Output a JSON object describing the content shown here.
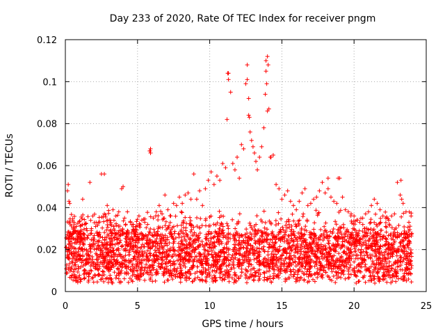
{
  "chart_data": {
    "type": "scatter",
    "title": "Day 233 of 2020, Rate Of TEC Index for receiver pngm",
    "xlabel": "GPS time / hours",
    "ylabel": "ROTI / TECUs",
    "xlim": [
      0,
      25
    ],
    "ylim": [
      0,
      0.12
    ],
    "x_ticks": [
      0,
      5,
      10,
      15,
      20,
      25
    ],
    "y_ticks": [
      0,
      0.02,
      0.04,
      0.06,
      0.08,
      0.1,
      0.12
    ],
    "x_tick_labels": [
      "0",
      "5",
      "10",
      "15",
      "20",
      "25"
    ],
    "y_tick_labels": [
      "0",
      "0.02",
      "0.04",
      "0.06",
      "0.08",
      "0.1",
      "0.12"
    ],
    "grid": true,
    "marker": "plus",
    "color": "#ff0000",
    "series": [
      {
        "name": "ROTI",
        "x": [
          0.05,
          0.15,
          0.25,
          0.35,
          0.45,
          0.6,
          0.75,
          0.9,
          1.05,
          1.2,
          1.35,
          1.5,
          1.7,
          1.9,
          2.1,
          2.3,
          2.5,
          2.7,
          2.9,
          3.1,
          3.3,
          3.5,
          3.7,
          3.9,
          4.1,
          4.3,
          4.5,
          4.7,
          4.9,
          5.1,
          5.3,
          5.5,
          5.7,
          5.85,
          5.9,
          6.1,
          6.3,
          6.5,
          6.7,
          6.9,
          7.1,
          7.3,
          7.5,
          7.7,
          7.9,
          8.1,
          8.3,
          8.5,
          8.7,
          8.9,
          9.1,
          9.3,
          9.5,
          9.7,
          9.9,
          10.1,
          10.3,
          10.5,
          10.7,
          10.9,
          11.1,
          11.2,
          11.3,
          11.45,
          11.6,
          11.75,
          11.9,
          12.05,
          12.2,
          12.35,
          12.5,
          12.6,
          12.7,
          12.8,
          12.9,
          13.0,
          13.1,
          13.2,
          13.3,
          13.45,
          13.6,
          13.75,
          13.85,
          13.9,
          14.0,
          14.1,
          14.25,
          14.4,
          14.6,
          14.8,
          15.0,
          15.2,
          15.4,
          15.6,
          15.8,
          16.0,
          16.2,
          16.4,
          16.6,
          16.8,
          17.0,
          17.2,
          17.4,
          17.6,
          17.8,
          18.0,
          18.2,
          18.4,
          18.6,
          18.8,
          19.0,
          19.2,
          19.4,
          19.6,
          19.8,
          20.0,
          20.2,
          20.4,
          20.6,
          20.8,
          21.0,
          21.2,
          21.4,
          21.6,
          21.8,
          22.0,
          22.2,
          22.4,
          22.6,
          22.8,
          23.0,
          23.2,
          23.4,
          23.6,
          23.8,
          23.95,
          0.2,
          0.3,
          2.7,
          5.85,
          5.9,
          11.25,
          11.3,
          12.6,
          12.7,
          12.75,
          13.9,
          13.95,
          14.0,
          14.05,
          14.2,
          18.2,
          18.9,
          23.25,
          23.3,
          4.0
        ],
        "y": [
          0.021,
          0.048,
          0.043,
          0.028,
          0.026,
          0.033,
          0.031,
          0.027,
          0.026,
          0.044,
          0.032,
          0.029,
          0.052,
          0.036,
          0.031,
          0.033,
          0.056,
          0.037,
          0.041,
          0.034,
          0.039,
          0.036,
          0.038,
          0.049,
          0.035,
          0.038,
          0.033,
          0.032,
          0.031,
          0.036,
          0.034,
          0.033,
          0.032,
          0.067,
          0.066,
          0.035,
          0.038,
          0.041,
          0.037,
          0.046,
          0.039,
          0.036,
          0.042,
          0.041,
          0.045,
          0.042,
          0.046,
          0.047,
          0.044,
          0.056,
          0.044,
          0.048,
          0.041,
          0.049,
          0.053,
          0.057,
          0.051,
          0.055,
          0.053,
          0.061,
          0.059,
          0.082,
          0.104,
          0.095,
          0.061,
          0.058,
          0.064,
          0.054,
          0.07,
          0.068,
          0.099,
          0.108,
          0.084,
          0.076,
          0.072,
          0.069,
          0.066,
          0.062,
          0.058,
          0.064,
          0.069,
          0.078,
          0.094,
          0.105,
          0.112,
          0.087,
          0.064,
          0.065,
          0.051,
          0.049,
          0.044,
          0.046,
          0.048,
          0.043,
          0.041,
          0.039,
          0.043,
          0.047,
          0.049,
          0.041,
          0.042,
          0.044,
          0.045,
          0.048,
          0.052,
          0.047,
          0.049,
          0.045,
          0.043,
          0.042,
          0.054,
          0.045,
          0.039,
          0.038,
          0.037,
          0.036,
          0.034,
          0.033,
          0.035,
          0.037,
          0.038,
          0.041,
          0.044,
          0.042,
          0.039,
          0.036,
          0.035,
          0.034,
          0.036,
          0.037,
          0.052,
          0.046,
          0.042,
          0.038,
          0.033,
          0.036,
          0.051,
          0.042,
          0.056,
          0.067,
          0.068,
          0.104,
          0.101,
          0.101,
          0.092,
          0.083,
          0.11,
          0.099,
          0.086,
          0.108,
          0.064,
          0.054,
          0.054,
          0.053,
          0.044,
          0.05
        ]
      }
    ]
  }
}
